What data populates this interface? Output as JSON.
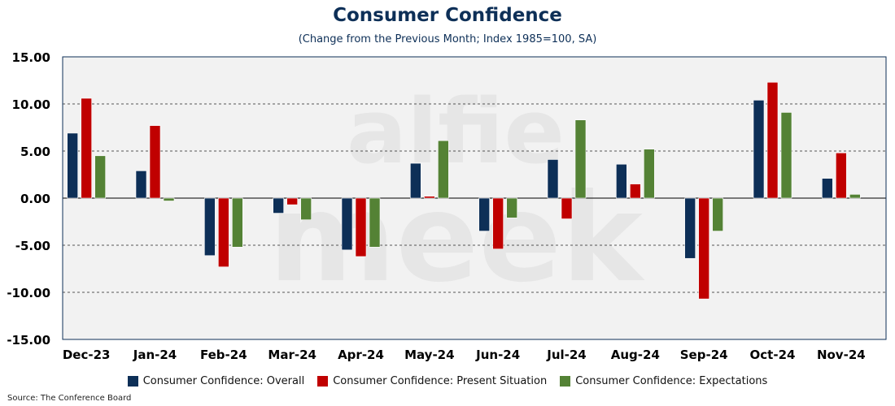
{
  "chart_data": {
    "type": "bar",
    "title": "Consumer Confidence",
    "subtitle": "(Change from the Previous Month; Index 1985=100, SA)",
    "categories": [
      "Dec-23",
      "Jan-24",
      "Feb-24",
      "Mar-24",
      "Apr-24",
      "May-24",
      "Jun-24",
      "Jul-24",
      "Aug-24",
      "Sep-24",
      "Oct-24",
      "Nov-24"
    ],
    "series": [
      {
        "name": "Consumer Confidence: Overall",
        "color": "#0d2f57",
        "values": [
          6.9,
          2.9,
          -6.1,
          -1.6,
          -5.5,
          3.7,
          -3.5,
          4.1,
          3.6,
          -6.4,
          10.4,
          2.1
        ]
      },
      {
        "name": "Consumer Confidence: Present Situation",
        "color": "#c00000",
        "values": [
          10.6,
          7.7,
          -7.3,
          -0.7,
          -6.2,
          0.2,
          -5.4,
          -2.2,
          1.5,
          -10.7,
          12.3,
          4.8
        ]
      },
      {
        "name": "Consumer Confidence: Expectations",
        "color": "#548235",
        "values": [
          4.5,
          -0.3,
          -5.2,
          -2.3,
          -5.2,
          6.1,
          -2.1,
          8.3,
          5.2,
          -3.5,
          9.1,
          0.4
        ]
      }
    ],
    "ylim": [
      -15,
      15
    ],
    "yticks": [
      15,
      10,
      5,
      0,
      -5,
      -10,
      -15
    ],
    "ytick_labels": [
      "15.00",
      "10.00",
      "5.00",
      "0.00",
      "-5.00",
      "-10.00",
      "-15.00"
    ],
    "grid": "dashed horizontal",
    "legend_position": "bottom",
    "plot_background": "#f2f2f2",
    "watermark": "alfie meek",
    "source": "Source: The Conference Board"
  }
}
